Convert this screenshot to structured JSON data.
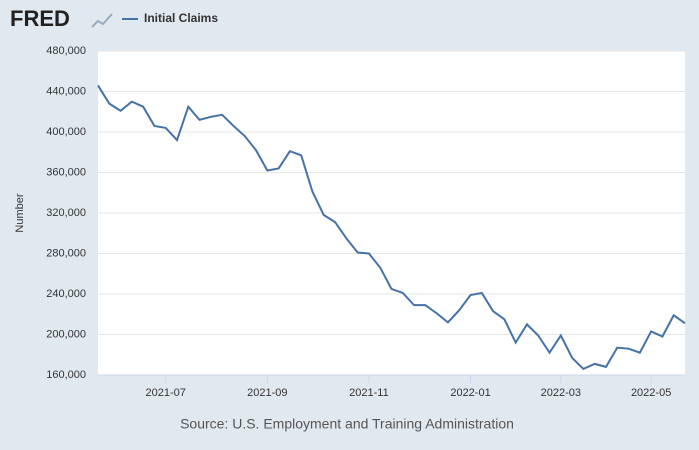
{
  "logo": "FRED",
  "chart_data": {
    "type": "line",
    "source": "Source: U.S. Employment and Training Administration",
    "y_label": "Number",
    "categories": [
      null,
      null,
      null,
      null,
      null,
      null,
      "2021-07",
      null,
      null,
      null,
      null,
      null,
      null,
      null,
      null,
      "2021-09",
      null,
      null,
      null,
      null,
      null,
      null,
      null,
      null,
      "2021-11",
      null,
      null,
      null,
      null,
      null,
      null,
      null,
      null,
      "2022-01",
      null,
      null,
      null,
      null,
      null,
      null,
      null,
      "2022-03",
      null,
      null,
      null,
      null,
      null,
      null,
      null,
      "2022-05",
      null,
      null,
      null
    ],
    "series": [
      {
        "name": "Initial Claims",
        "color": "#4572a7",
        "values": [
          446000,
          428000,
          421000,
          430000,
          425000,
          406000,
          404000,
          392000,
          425000,
          412000,
          415000,
          417000,
          406000,
          396000,
          382000,
          362000,
          364000,
          381000,
          377000,
          341000,
          318000,
          311000,
          295000,
          281000,
          280000,
          266000,
          245000,
          241000,
          229000,
          229000,
          221000,
          212000,
          224000,
          239000,
          241000,
          223000,
          215000,
          192000,
          210000,
          199000,
          182000,
          199000,
          177000,
          166000,
          171000,
          168000,
          187000,
          186000,
          182000,
          203000,
          198000,
          219000,
          211000
        ]
      }
    ],
    "ylim": [
      160000,
      480000
    ],
    "yticks": [
      {
        "value": 160000,
        "label": "160,000"
      },
      {
        "value": 200000,
        "label": "200,000"
      },
      {
        "value": 240000,
        "label": "240,000"
      },
      {
        "value": 280000,
        "label": "280,000"
      },
      {
        "value": 320000,
        "label": "320,000"
      },
      {
        "value": 360000,
        "label": "360,000"
      },
      {
        "value": 400000,
        "label": "400,000"
      },
      {
        "value": 440000,
        "label": "440,000"
      },
      {
        "value": 480000,
        "label": "480,000"
      }
    ],
    "grid": true
  }
}
